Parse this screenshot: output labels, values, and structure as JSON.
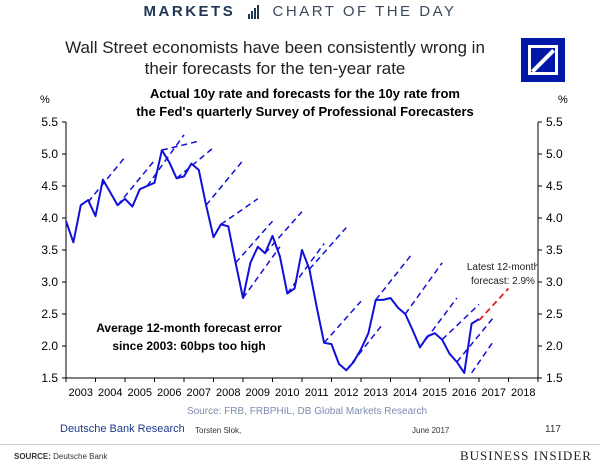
{
  "banner": {
    "brand": "MARKETS",
    "subtitle": "CHART OF THE DAY"
  },
  "headline": "Wall Street economists have been consistently wrong in their forecasts for the ten-year rate",
  "chart_data": {
    "type": "line",
    "title": "Actual 10y rate and forecasts for the 10y rate from the Fed's quarterly Survey of Professional Forecasters",
    "ylabel_left": "%",
    "ylabel_right": "%",
    "ylim": [
      1.5,
      5.5
    ],
    "yticks": [
      "5.5",
      "5.0",
      "4.5",
      "4.0",
      "3.5",
      "3.0",
      "2.5",
      "2.0",
      "1.5"
    ],
    "xlim": [
      2003,
      2019
    ],
    "xticks": [
      "2003",
      "2004",
      "2005",
      "2006",
      "2007",
      "2008",
      "2009",
      "2010",
      "2011",
      "2012",
      "2013",
      "2014",
      "2015",
      "2016",
      "2017",
      "2018"
    ],
    "colors": {
      "actual": "#1010d8",
      "forecast": "#1010d8",
      "latest_forecast": "#e02020"
    },
    "series": [
      {
        "name": "Actual 10y rate",
        "style": "solid",
        "x": [
          2003.0,
          2003.25,
          2003.5,
          2003.75,
          2004.0,
          2004.25,
          2004.5,
          2004.75,
          2005.0,
          2005.25,
          2005.5,
          2005.75,
          2006.0,
          2006.25,
          2006.5,
          2006.75,
          2007.0,
          2007.25,
          2007.5,
          2007.75,
          2008.0,
          2008.25,
          2008.5,
          2008.75,
          2009.0,
          2009.25,
          2009.5,
          2009.75,
          2010.0,
          2010.25,
          2010.5,
          2010.75,
          2011.0,
          2011.25,
          2011.5,
          2011.75,
          2012.0,
          2012.25,
          2012.5,
          2012.75,
          2013.0,
          2013.25,
          2013.5,
          2013.75,
          2014.0,
          2014.25,
          2014.5,
          2014.75,
          2015.0,
          2015.25,
          2015.5,
          2015.75,
          2016.0,
          2016.25,
          2016.5,
          2016.75,
          2017.0
        ],
        "y": [
          3.95,
          3.62,
          4.2,
          4.28,
          4.03,
          4.6,
          4.4,
          4.2,
          4.3,
          4.18,
          4.45,
          4.5,
          4.55,
          5.06,
          4.87,
          4.62,
          4.65,
          4.85,
          4.75,
          4.2,
          3.7,
          3.9,
          3.87,
          3.3,
          2.75,
          3.3,
          3.55,
          3.45,
          3.72,
          3.4,
          2.82,
          2.9,
          3.5,
          3.2,
          2.6,
          2.05,
          2.03,
          1.72,
          1.62,
          1.75,
          1.95,
          2.2,
          2.72,
          2.72,
          2.75,
          2.6,
          2.5,
          2.25,
          1.98,
          2.15,
          2.2,
          2.1,
          1.88,
          1.75,
          1.58,
          2.35,
          2.42
        ]
      },
      {
        "name": "Forecasts for the 10y rate",
        "style": "dashed",
        "segments": [
          {
            "x": [
              2003.75,
              2005.0
            ],
            "y": [
              4.25,
              4.95
            ]
          },
          {
            "x": [
              2004.75,
              2006.0
            ],
            "y": [
              4.2,
              4.9
            ]
          },
          {
            "x": [
              2005.75,
              2007.0
            ],
            "y": [
              4.5,
              5.3
            ]
          },
          {
            "x": [
              2006.25,
              2007.5
            ],
            "y": [
              5.06,
              5.2
            ]
          },
          {
            "x": [
              2006.75,
              2008.0
            ],
            "y": [
              4.62,
              5.1
            ]
          },
          {
            "x": [
              2007.75,
              2009.0
            ],
            "y": [
              4.2,
              4.9
            ]
          },
          {
            "x": [
              2008.25,
              2009.5
            ],
            "y": [
              3.9,
              4.3
            ]
          },
          {
            "x": [
              2008.75,
              2010.0
            ],
            "y": [
              3.3,
              3.95
            ]
          },
          {
            "x": [
              2009.0,
              2010.25
            ],
            "y": [
              2.75,
              3.55
            ]
          },
          {
            "x": [
              2009.75,
              2011.0
            ],
            "y": [
              3.45,
              4.1
            ]
          },
          {
            "x": [
              2010.5,
              2011.75
            ],
            "y": [
              2.82,
              3.6
            ]
          },
          {
            "x": [
              2011.25,
              2012.5
            ],
            "y": [
              3.2,
              3.85
            ]
          },
          {
            "x": [
              2011.75,
              2013.0
            ],
            "y": [
              2.05,
              2.7
            ]
          },
          {
            "x": [
              2012.5,
              2013.75
            ],
            "y": [
              1.62,
              2.35
            ]
          },
          {
            "x": [
              2013.5,
              2014.75
            ],
            "y": [
              2.72,
              3.45
            ]
          },
          {
            "x": [
              2014.5,
              2015.75
            ],
            "y": [
              2.5,
              3.3
            ]
          },
          {
            "x": [
              2015.0,
              2016.25
            ],
            "y": [
              1.98,
              2.75
            ]
          },
          {
            "x": [
              2015.75,
              2017.0
            ],
            "y": [
              2.1,
              2.65
            ]
          },
          {
            "x": [
              2016.25,
              2017.5
            ],
            "y": [
              1.75,
              2.45
            ]
          },
          {
            "x": [
              2016.75,
              2017.5
            ],
            "y": [
              1.58,
              2.08
            ]
          }
        ]
      },
      {
        "name": "Latest 12-month forecast",
        "style": "dashed",
        "x": [
          2017.0,
          2018.0
        ],
        "y": [
          2.4,
          2.9
        ]
      }
    ],
    "annotations": {
      "latest_forecast": "Latest 12-month forecast: 2.9%",
      "forecast_error": "Average 12-month forecast error since 2003: 60bps too high"
    },
    "source": "Source: FRB, FRBPHIL, DB Global Markets Research",
    "grid": false
  },
  "footer": {
    "publisher": "Deutsche Bank Research",
    "author": "Torsten Slok,",
    "date": "June 2017",
    "page": "117"
  },
  "credit": {
    "label": "SOURCE:",
    "value": "Deutsche Bank"
  },
  "bi_logo": "BUSINESS INSIDER"
}
